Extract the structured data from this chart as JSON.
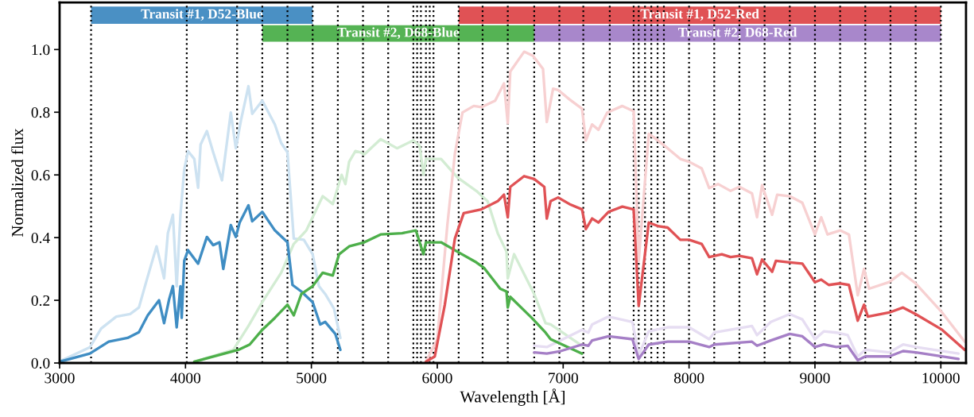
{
  "chart_data": {
    "type": "line",
    "xlabel": "Wavelength [Å]",
    "ylabel": "Normalized flux",
    "xlim": [
      3000,
      10200
    ],
    "xticks": [
      3000,
      4000,
      5000,
      6000,
      7000,
      8000,
      9000,
      10000
    ],
    "ylim": [
      0,
      1.15
    ],
    "yticks": [
      {
        "value": 0,
        "label": "0.0"
      },
      {
        "value": 0.2,
        "label": "0.2"
      },
      {
        "value": 0.4,
        "label": "0.4"
      },
      {
        "value": 0.6,
        "label": "0.6"
      },
      {
        "value": 0.8,
        "label": "0.8"
      },
      {
        "value": 1.0,
        "label": "1.0"
      }
    ],
    "grid": false,
    "series": [
      {
        "color": "#cde2f1",
        "x": [
          3000,
          3240,
          3330,
          3450,
          3560,
          3630,
          3690,
          3770,
          3830,
          3860,
          3900,
          3930,
          3960,
          3990,
          4020,
          4070,
          4100,
          4120,
          4170,
          4220,
          4290,
          4360,
          4400,
          4440,
          4500,
          4530,
          4610,
          4710,
          4760,
          4810,
          4860,
          4940,
          5010,
          5060,
          5110,
          5180,
          5230
        ],
        "values": [
          0.005,
          0.05,
          0.11,
          0.148,
          0.156,
          0.177,
          0.262,
          0.372,
          0.27,
          0.414,
          0.473,
          0.245,
          0.473,
          0.617,
          0.676,
          0.651,
          0.559,
          0.697,
          0.74,
          0.672,
          0.583,
          0.799,
          0.685,
          0.773,
          0.883,
          0.795,
          0.837,
          0.761,
          0.702,
          0.672,
          0.397,
          0.393,
          0.347,
          0.245,
          0.22,
          0.173,
          0.08
        ]
      },
      {
        "color": "#d3ecd3",
        "x": [
          4070,
          4380,
          4500,
          4610,
          4760,
          4860,
          4960,
          5090,
          5170,
          5240,
          5270,
          5300,
          5350,
          5390,
          5420,
          5550,
          5680,
          5810,
          5860,
          5890,
          5910,
          6030,
          6160,
          6310,
          6400,
          6480,
          6550,
          6560,
          6610,
          6770,
          6860,
          6900,
          7150
        ],
        "values": [
          0.004,
          0.042,
          0.118,
          0.194,
          0.288,
          0.38,
          0.423,
          0.532,
          0.507,
          0.6,
          0.571,
          0.642,
          0.676,
          0.672,
          0.665,
          0.714,
          0.685,
          0.71,
          0.693,
          0.6,
          0.651,
          0.651,
          0.592,
          0.549,
          0.516,
          0.414,
          0.355,
          0.27,
          0.347,
          0.22,
          0.127,
          0.123,
          0.055
        ]
      },
      {
        "color": "#f7d0d1",
        "x": [
          5910,
          6000,
          6080,
          6140,
          6200,
          6290,
          6350,
          6460,
          6530,
          6560,
          6580,
          6690,
          6760,
          6840,
          6870,
          6920,
          6960,
          7050,
          7150,
          7180,
          7230,
          7280,
          7350,
          7470,
          7560,
          7600,
          7680,
          7720,
          7830,
          7930,
          8000,
          8100,
          8160,
          8230,
          8330,
          8400,
          8500,
          8540,
          8580,
          8660,
          8700,
          8800,
          8900,
          9000,
          9050,
          9100,
          9200,
          9270,
          9340,
          9390,
          9430,
          9590,
          9690,
          9800,
          10010,
          10190
        ],
        "values": [
          0.004,
          0.076,
          0.44,
          0.668,
          0.799,
          0.82,
          0.816,
          0.837,
          0.892,
          0.765,
          0.93,
          0.993,
          0.98,
          0.938,
          0.769,
          0.875,
          0.871,
          0.841,
          0.811,
          0.71,
          0.761,
          0.744,
          0.799,
          0.82,
          0.803,
          0.326,
          0.731,
          0.72,
          0.685,
          0.651,
          0.642,
          0.621,
          0.558,
          0.571,
          0.549,
          0.562,
          0.541,
          0.465,
          0.567,
          0.473,
          0.537,
          0.532,
          0.511,
          0.41,
          0.465,
          0.41,
          0.423,
          0.41,
          0.216,
          0.3,
          0.237,
          0.258,
          0.288,
          0.254,
          0.161,
          0.068
        ]
      },
      {
        "color": "#e6ddf2",
        "x": [
          6770,
          6870,
          6980,
          7150,
          7200,
          7230,
          7360,
          7550,
          7600,
          7680,
          7830,
          8000,
          8160,
          8200,
          8500,
          8540,
          8650,
          8800,
          8900,
          9000,
          9070,
          9170,
          9260,
          9340,
          9400,
          9590,
          9700,
          9800,
          10140
        ],
        "values": [
          0.055,
          0.051,
          0.072,
          0.106,
          0.097,
          0.123,
          0.148,
          0.131,
          0.025,
          0.101,
          0.114,
          0.114,
          0.076,
          0.097,
          0.118,
          0.089,
          0.131,
          0.156,
          0.139,
          0.076,
          0.101,
          0.097,
          0.089,
          0.021,
          0.042,
          0.034,
          0.059,
          0.051,
          0.03
        ]
      },
      {
        "color": "#3f8dc3",
        "x": [
          3000,
          3240,
          3390,
          3540,
          3630,
          3700,
          3790,
          3830,
          3870,
          3900,
          3930,
          3960,
          3970,
          3990,
          4020,
          4100,
          4170,
          4220,
          4270,
          4300,
          4360,
          4400,
          4430,
          4500,
          4530,
          4610,
          4710,
          4810,
          4850,
          4920,
          5010,
          5070,
          5110,
          5190,
          5230
        ],
        "values": [
          0.004,
          0.03,
          0.068,
          0.08,
          0.098,
          0.152,
          0.2,
          0.127,
          0.203,
          0.245,
          0.114,
          0.245,
          0.144,
          0.326,
          0.36,
          0.317,
          0.402,
          0.376,
          0.385,
          0.3,
          0.44,
          0.402,
          0.448,
          0.503,
          0.452,
          0.482,
          0.423,
          0.385,
          0.249,
          0.228,
          0.194,
          0.123,
          0.131,
          0.093,
          0.042
        ]
      },
      {
        "color": "#4daf4a",
        "x": [
          4070,
          4420,
          4510,
          4610,
          4710,
          4810,
          4860,
          4920,
          5010,
          5090,
          5170,
          5220,
          5300,
          5420,
          5550,
          5720,
          5830,
          5890,
          5910,
          6030,
          6160,
          6310,
          6370,
          6500,
          6550,
          6560,
          6580,
          6750,
          6860,
          6900,
          7150
        ],
        "values": [
          0.004,
          0.042,
          0.059,
          0.106,
          0.144,
          0.186,
          0.152,
          0.22,
          0.245,
          0.288,
          0.279,
          0.347,
          0.372,
          0.385,
          0.41,
          0.414,
          0.423,
          0.347,
          0.385,
          0.385,
          0.355,
          0.321,
          0.304,
          0.237,
          0.228,
          0.177,
          0.211,
          0.144,
          0.097,
          0.076,
          0.03
        ]
      },
      {
        "color": "#e05255",
        "x": [
          5910,
          5980,
          6060,
          6140,
          6210,
          6350,
          6480,
          6530,
          6560,
          6580,
          6690,
          6770,
          6850,
          6870,
          6900,
          6960,
          7050,
          7150,
          7180,
          7230,
          7280,
          7360,
          7470,
          7560,
          7600,
          7680,
          7760,
          7830,
          7930,
          8000,
          8100,
          8160,
          8260,
          8330,
          8400,
          8500,
          8540,
          8580,
          8660,
          8690,
          8800,
          8900,
          9000,
          9050,
          9110,
          9200,
          9270,
          9340,
          9390,
          9420,
          9590,
          9700,
          9800,
          10010,
          10190
        ],
        "values": [
          0.004,
          0.021,
          0.186,
          0.397,
          0.478,
          0.49,
          0.516,
          0.537,
          0.465,
          0.562,
          0.596,
          0.587,
          0.562,
          0.461,
          0.516,
          0.528,
          0.507,
          0.49,
          0.427,
          0.461,
          0.448,
          0.482,
          0.499,
          0.49,
          0.182,
          0.448,
          0.436,
          0.432,
          0.393,
          0.393,
          0.38,
          0.338,
          0.347,
          0.338,
          0.342,
          0.334,
          0.283,
          0.33,
          0.291,
          0.326,
          0.321,
          0.317,
          0.258,
          0.266,
          0.249,
          0.254,
          0.249,
          0.135,
          0.186,
          0.148,
          0.161,
          0.177,
          0.156,
          0.106,
          0.042
        ]
      },
      {
        "color": "#a57fc6",
        "x": [
          6770,
          6870,
          6980,
          7150,
          7200,
          7230,
          7360,
          7550,
          7600,
          7680,
          7830,
          8000,
          8160,
          8200,
          8500,
          8540,
          8650,
          8800,
          8900,
          9000,
          9070,
          9170,
          9260,
          9340,
          9400,
          9590,
          9700,
          9800,
          10140
        ],
        "values": [
          0.034,
          0.03,
          0.038,
          0.059,
          0.055,
          0.072,
          0.085,
          0.076,
          0.013,
          0.059,
          0.068,
          0.068,
          0.051,
          0.059,
          0.068,
          0.055,
          0.072,
          0.093,
          0.085,
          0.051,
          0.059,
          0.051,
          0.055,
          0.009,
          0.021,
          0.021,
          0.038,
          0.034,
          0.013
        ]
      }
    ],
    "bands": [
      {
        "axis": "x",
        "from": 3250,
        "to": 5010,
        "label": "Transit #1, D52-Blue",
        "color": "#4a90c4"
      },
      {
        "axis": "x",
        "from": 4610,
        "to": 6770,
        "label": "Transit #2, D68-Blue",
        "color": "#55b354"
      },
      {
        "axis": "x",
        "from": 6170,
        "to": 10000,
        "label": "Transit #1, D52-Red",
        "color": "#e05255"
      },
      {
        "axis": "x",
        "from": 6770,
        "to": 10000,
        "label": "Transit #2, D68-Red",
        "color": "#a887cb"
      }
    ],
    "ref_lines": [
      {
        "axis": "x",
        "value": 3250,
        "line_style": "dotted",
        "color": "#000000"
      },
      {
        "axis": "x",
        "value": 4010,
        "line_style": "dotted",
        "color": "#000000"
      },
      {
        "axis": "x",
        "value": 4410,
        "line_style": "dotted",
        "color": "#000000"
      },
      {
        "axis": "x",
        "value": 4610,
        "line_style": "dotted",
        "color": "#000000"
      },
      {
        "axis": "x",
        "value": 4810,
        "line_style": "dotted",
        "color": "#000000"
      },
      {
        "axis": "x",
        "value": 5010,
        "line_style": "dotted",
        "color": "#000000"
      },
      {
        "axis": "x",
        "value": 5210,
        "line_style": "dotted",
        "color": "#000000"
      },
      {
        "axis": "x",
        "value": 5410,
        "line_style": "dotted",
        "color": "#000000"
      },
      {
        "axis": "x",
        "value": 5610,
        "line_style": "dotted",
        "color": "#000000"
      },
      {
        "axis": "x",
        "value": 5810,
        "line_style": "dotted",
        "color": "#000000"
      },
      {
        "axis": "x",
        "value": 5840,
        "line_style": "dotted",
        "color": "#000000"
      },
      {
        "axis": "x",
        "value": 5870,
        "line_style": "dotted",
        "color": "#000000"
      },
      {
        "axis": "x",
        "value": 5910,
        "line_style": "dotted",
        "color": "#000000"
      },
      {
        "axis": "x",
        "value": 5940,
        "line_style": "dotted",
        "color": "#000000"
      },
      {
        "axis": "x",
        "value": 5970,
        "line_style": "dotted",
        "color": "#000000"
      },
      {
        "axis": "x",
        "value": 6170,
        "line_style": "dotted",
        "color": "#000000"
      },
      {
        "axis": "x",
        "value": 6360,
        "line_style": "dotted",
        "color": "#000000"
      },
      {
        "axis": "x",
        "value": 6560,
        "line_style": "dotted",
        "color": "#000000"
      },
      {
        "axis": "x",
        "value": 6770,
        "line_style": "dotted",
        "color": "#000000"
      },
      {
        "axis": "x",
        "value": 6970,
        "line_style": "dotted",
        "color": "#000000"
      },
      {
        "axis": "x",
        "value": 7160,
        "line_style": "dotted",
        "color": "#000000"
      },
      {
        "axis": "x",
        "value": 7370,
        "line_style": "dotted",
        "color": "#000000"
      },
      {
        "axis": "x",
        "value": 7560,
        "line_style": "dotted",
        "color": "#000000"
      },
      {
        "axis": "x",
        "value": 7600,
        "line_style": "dotted",
        "color": "#000000"
      },
      {
        "axis": "x",
        "value": 7650,
        "line_style": "dotted",
        "color": "#000000"
      },
      {
        "axis": "x",
        "value": 7700,
        "line_style": "dotted",
        "color": "#000000"
      },
      {
        "axis": "x",
        "value": 7750,
        "line_style": "dotted",
        "color": "#000000"
      },
      {
        "axis": "x",
        "value": 7800,
        "line_style": "dotted",
        "color": "#000000"
      },
      {
        "axis": "x",
        "value": 8000,
        "line_style": "dotted",
        "color": "#000000"
      },
      {
        "axis": "x",
        "value": 8200,
        "line_style": "dotted",
        "color": "#000000"
      },
      {
        "axis": "x",
        "value": 8400,
        "line_style": "dotted",
        "color": "#000000"
      },
      {
        "axis": "x",
        "value": 8600,
        "line_style": "dotted",
        "color": "#000000"
      },
      {
        "axis": "x",
        "value": 8800,
        "line_style": "dotted",
        "color": "#000000"
      },
      {
        "axis": "x",
        "value": 9000,
        "line_style": "dotted",
        "color": "#000000"
      },
      {
        "axis": "x",
        "value": 9200,
        "line_style": "dotted",
        "color": "#000000"
      },
      {
        "axis": "x",
        "value": 9400,
        "line_style": "dotted",
        "color": "#000000"
      },
      {
        "axis": "x",
        "value": 9600,
        "line_style": "dotted",
        "color": "#000000"
      },
      {
        "axis": "x",
        "value": 9800,
        "line_style": "dotted",
        "color": "#000000"
      },
      {
        "axis": "x",
        "value": 10000,
        "line_style": "dotted",
        "color": "#000000"
      }
    ]
  }
}
